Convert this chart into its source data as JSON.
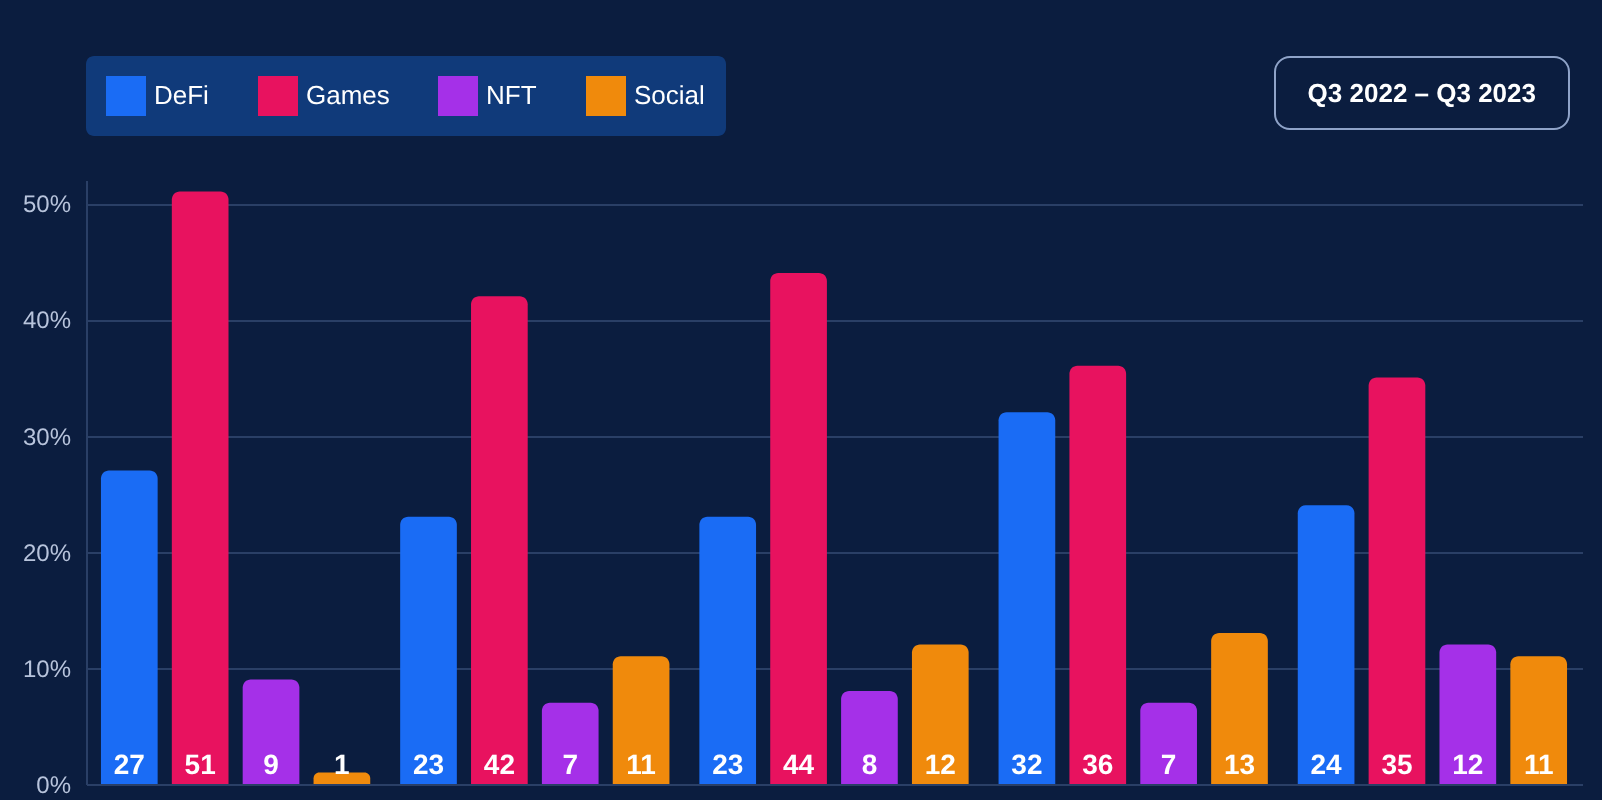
{
  "chart_data": {
    "type": "bar",
    "categories": [
      null,
      null,
      null,
      null,
      null
    ],
    "series": [
      {
        "name": "DeFi",
        "color": "#1a6cf5",
        "values": [
          27,
          23,
          23,
          32,
          24
        ]
      },
      {
        "name": "Games",
        "color": "#e8125f",
        "values": [
          51,
          42,
          44,
          36,
          35
        ]
      },
      {
        "name": "NFT",
        "color": "#a530e8",
        "values": [
          9,
          7,
          8,
          7,
          12
        ]
      },
      {
        "name": "Social",
        "color": "#f08a0c",
        "values": [
          1,
          11,
          12,
          13,
          11
        ]
      }
    ],
    "ylim": [
      0,
      52
    ],
    "yticks": [
      {
        "value": 0,
        "label": "0%"
      },
      {
        "value": 10,
        "label": "10%"
      },
      {
        "value": 20,
        "label": "20%"
      },
      {
        "value": 30,
        "label": "30%"
      },
      {
        "value": 40,
        "label": "40%"
      },
      {
        "value": 50,
        "label": "50%"
      }
    ],
    "annotations": [
      "Q3 2022 – Q3 2023"
    ],
    "grid": "y",
    "legend": "top left",
    "data_labels": true
  }
}
